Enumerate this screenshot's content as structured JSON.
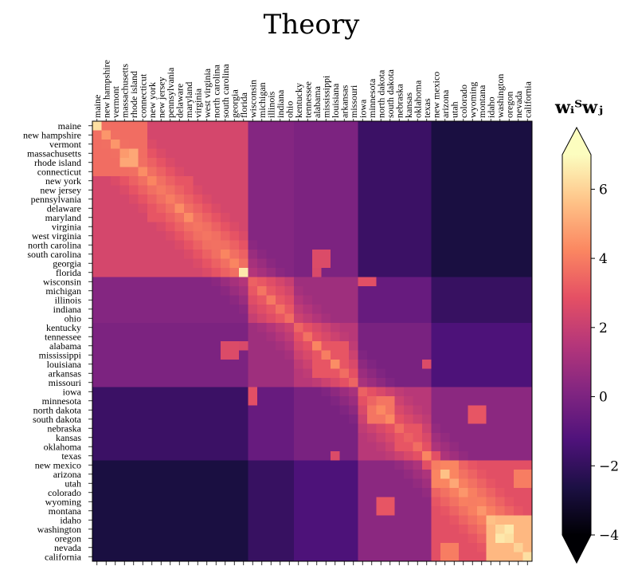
{
  "chart_data": {
    "type": "heatmap",
    "title": "Theory",
    "colorbar": {
      "label": "w_i^T w_j",
      "label_text": "wᵢᵀwⱼ",
      "ticks": [
        "−4",
        "−2",
        "0",
        "2",
        "4",
        "6"
      ],
      "tick_values": [
        -4,
        -2,
        0,
        2,
        4,
        6
      ],
      "range": [
        -4,
        7
      ],
      "extend": "both",
      "colormap": "magma"
    },
    "states": [
      "maine",
      "new hampshire",
      "vermont",
      "massachusetts",
      "rhode island",
      "connecticut",
      "new york",
      "new jersey",
      "pennsylvania",
      "delaware",
      "maryland",
      "virginia",
      "west virginia",
      "north carolina",
      "south carolina",
      "georgia",
      "florida",
      "wisconsin",
      "michigan",
      "illinois",
      "indiana",
      "ohio",
      "kentucky",
      "tennessee",
      "alabama",
      "mississippi",
      "louisiana",
      "arkansas",
      "missouri",
      "iowa",
      "minnesota",
      "north dakota",
      "south dakota",
      "nebraska",
      "kansas",
      "oklahoma",
      "texas",
      "new mexico",
      "arizona",
      "utah",
      "colorado",
      "wyoming",
      "montana",
      "idaho",
      "washington",
      "oregon",
      "nevada",
      "california"
    ],
    "regions": [
      0,
      0,
      0,
      0,
      0,
      0,
      0,
      0,
      0,
      0,
      0,
      0,
      0,
      0,
      0,
      0,
      0,
      1,
      1,
      1,
      1,
      1,
      2,
      2,
      2,
      2,
      2,
      2,
      2,
      3,
      3,
      3,
      3,
      3,
      3,
      3,
      3,
      4,
      4,
      4,
      4,
      4,
      4,
      4,
      4,
      4,
      4,
      4
    ],
    "diagonal": [
      6.3,
      4.6,
      4.6,
      4.7,
      5.0,
      4.4,
      4.2,
      3.9,
      4.0,
      4.4,
      4.4,
      3.8,
      3.8,
      3.7,
      4.2,
      4.2,
      6.5,
      3.3,
      3.8,
      3.9,
      3.7,
      3.6,
      3.4,
      3.7,
      4.2,
      4.0,
      4.4,
      3.6,
      3.4,
      3.3,
      3.4,
      4.3,
      4.3,
      3.6,
      3.3,
      3.6,
      4.2,
      4.0,
      5.6,
      5.0,
      4.6,
      4.0,
      4.6,
      5.6,
      6.1,
      6.3,
      6.0,
      6.3
    ],
    "region_block_values": [
      [
        2.4,
        0.2,
        0.0,
        -1.8,
        -2.7
      ],
      [
        0.2,
        1.8,
        0.9,
        -0.6,
        -1.9
      ],
      [
        0.0,
        0.9,
        1.6,
        -0.1,
        -1.3
      ],
      [
        -1.8,
        -0.6,
        -0.1,
        1.6,
        0.4
      ],
      [
        -2.7,
        -1.9,
        -1.3,
        0.4,
        2.8
      ]
    ],
    "highlights": [
      {
        "rows": [
          "maine",
          "new hampshire",
          "vermont",
          "massachusetts",
          "rhode island",
          "connecticut"
        ],
        "cols": [
          "maine",
          "new hampshire",
          "vermont",
          "massachusetts",
          "rhode island",
          "connecticut"
        ],
        "value": 3.6
      },
      {
        "rows": [
          "massachusetts",
          "rhode island"
        ],
        "cols": [
          "massachusetts",
          "rhode island"
        ],
        "value": 5.0
      },
      {
        "rows": [
          "new york",
          "new jersey",
          "pennsylvania",
          "delaware",
          "maryland"
        ],
        "cols": [
          "new york",
          "new jersey",
          "pennsylvania",
          "delaware",
          "maryland"
        ],
        "value": 3.0
      },
      {
        "rows": [
          "north carolina",
          "south carolina",
          "georgia"
        ],
        "cols": [
          "north carolina",
          "south carolina",
          "georgia"
        ],
        "value": 3.0
      },
      {
        "rows": [
          "florida"
        ],
        "cols": [
          "georgia",
          "alabama"
        ],
        "value": 2.5
      },
      {
        "rows": [
          "georgia",
          "south carolina"
        ],
        "cols": [
          "alabama",
          "mississippi"
        ],
        "value": 2.6
      },
      {
        "rows": [
          "wisconsin"
        ],
        "cols": [
          "minnesota",
          "iowa"
        ],
        "value": 2.8
      },
      {
        "rows": [
          "alabama",
          "mississippi",
          "louisiana",
          "arkansas"
        ],
        "cols": [
          "alabama",
          "mississippi",
          "louisiana",
          "arkansas"
        ],
        "value": 3.0
      },
      {
        "rows": [
          "louisiana"
        ],
        "cols": [
          "texas"
        ],
        "value": 2.6
      },
      {
        "rows": [
          "north dakota",
          "south dakota",
          "minnesota"
        ],
        "cols": [
          "north dakota",
          "south dakota",
          "minnesota"
        ],
        "value": 3.8
      },
      {
        "rows": [
          "north dakota",
          "south dakota"
        ],
        "cols": [
          "montana",
          "wyoming"
        ],
        "value": 3.0
      },
      {
        "rows": [
          "nebraska",
          "kansas",
          "oklahoma"
        ],
        "cols": [
          "nebraska",
          "kansas",
          "oklahoma"
        ],
        "value": 3.0
      },
      {
        "rows": [
          "texas"
        ],
        "cols": [
          "new mexico",
          "oklahoma"
        ],
        "value": 2.8
      },
      {
        "rows": [
          "arizona",
          "utah",
          "new mexico"
        ],
        "cols": [
          "arizona",
          "utah",
          "new mexico"
        ],
        "value": 4.2
      },
      {
        "rows": [
          "arizona",
          "utah"
        ],
        "cols": [
          "nevada",
          "california"
        ],
        "value": 4.0
      },
      {
        "rows": [
          "idaho",
          "washington",
          "oregon",
          "nevada",
          "california"
        ],
        "cols": [
          "idaho",
          "washington",
          "oregon",
          "nevada",
          "california"
        ],
        "value": 5.4
      },
      {
        "rows": [
          "washington",
          "oregon"
        ],
        "cols": [
          "washington",
          "oregon"
        ],
        "value": 6.5
      },
      {
        "rows": [
          "colorado",
          "wyoming",
          "montana"
        ],
        "cols": [
          "colorado",
          "wyoming",
          "montana",
          "idaho"
        ],
        "value": 3.2
      }
    ],
    "grid": false,
    "legend": "right"
  },
  "colors": {
    "magma_stops": [
      "#000004",
      "#1c1044",
      "#4f127b",
      "#812581",
      "#b5367a",
      "#e55064",
      "#fb8761",
      "#fec287",
      "#fcfdbf"
    ]
  }
}
